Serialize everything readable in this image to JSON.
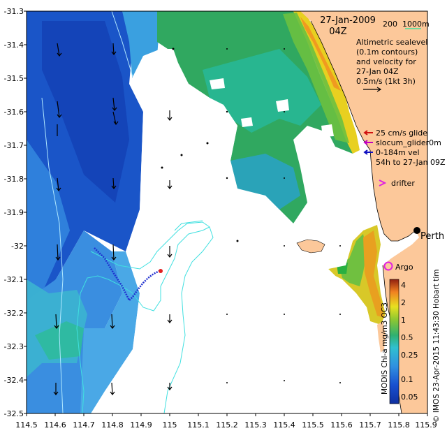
{
  "title": {
    "date": "27-Jan-2009",
    "time": "04Z"
  },
  "bathymetry_legend": {
    "label_200": "200",
    "label_1000": "1000m",
    "color_200": "#40e0e0",
    "color_1000": "#40e0a0"
  },
  "sealevel_text": [
    "Altimetric sealevel",
    "(0.1m contours)",
    "and velocity for",
    "27-Jan 04Z",
    "0.5m/s (1kt 3h)"
  ],
  "glider_legend": [
    {
      "text": "25 cm/s glide",
      "color": "#d01010"
    },
    {
      "text": "slocum_glider0m",
      "color": "#c000c0"
    },
    {
      "text": "0-184m vel",
      "color": "#1010c0"
    },
    {
      "text": "54h to 27-Jan 09Z",
      "color": "#000000"
    }
  ],
  "drifter_label": "drifter",
  "city_label": "Perth",
  "city_label_hidden": "Hobart tim",
  "argo_label": "Argo",
  "colorbar": {
    "label": "MODIS Chl-a mg/m3 OC3",
    "ticks": [
      "4",
      "2",
      "1",
      "0.5",
      "0.25",
      "0.1",
      "0.05"
    ]
  },
  "credit": "© IMOS 23-Apr-2015 11:43:30 Hobart tim",
  "colors": {
    "land": "#fcc89a",
    "deep_blue": "#1750c8",
    "mid_blue": "#2f86e0",
    "light_blue": "#4aa8e6",
    "teal": "#3cc4b8",
    "green": "#2fb050",
    "yellow": "#e8e020",
    "orange": "#f0a020",
    "red_glider": "#e02020",
    "blue_track": "#2030d0",
    "magenta": "#e020e0"
  },
  "chart_data": {
    "type": "map",
    "xlim": [
      114.5,
      115.9
    ],
    "ylim": [
      -32.5,
      -31.3
    ],
    "x_ticks": [
      "114.5",
      "114.6",
      "114.7",
      "114.8",
      "114.9",
      "115",
      "115.1",
      "115.2",
      "115.3",
      "115.4",
      "115.5",
      "115.6",
      "115.7",
      "115.8",
      "115.9"
    ],
    "y_ticks": [
      "-31.3",
      "-31.4",
      "-31.5",
      "-31.6",
      "-31.7",
      "-31.8",
      "-31.9",
      "-32",
      "-32.1",
      "-32.2",
      "-32.3",
      "-32.4",
      "-32.5"
    ],
    "colorbar_scale": "log",
    "colorbar_range_mg_m3": [
      0.03,
      4
    ]
  }
}
